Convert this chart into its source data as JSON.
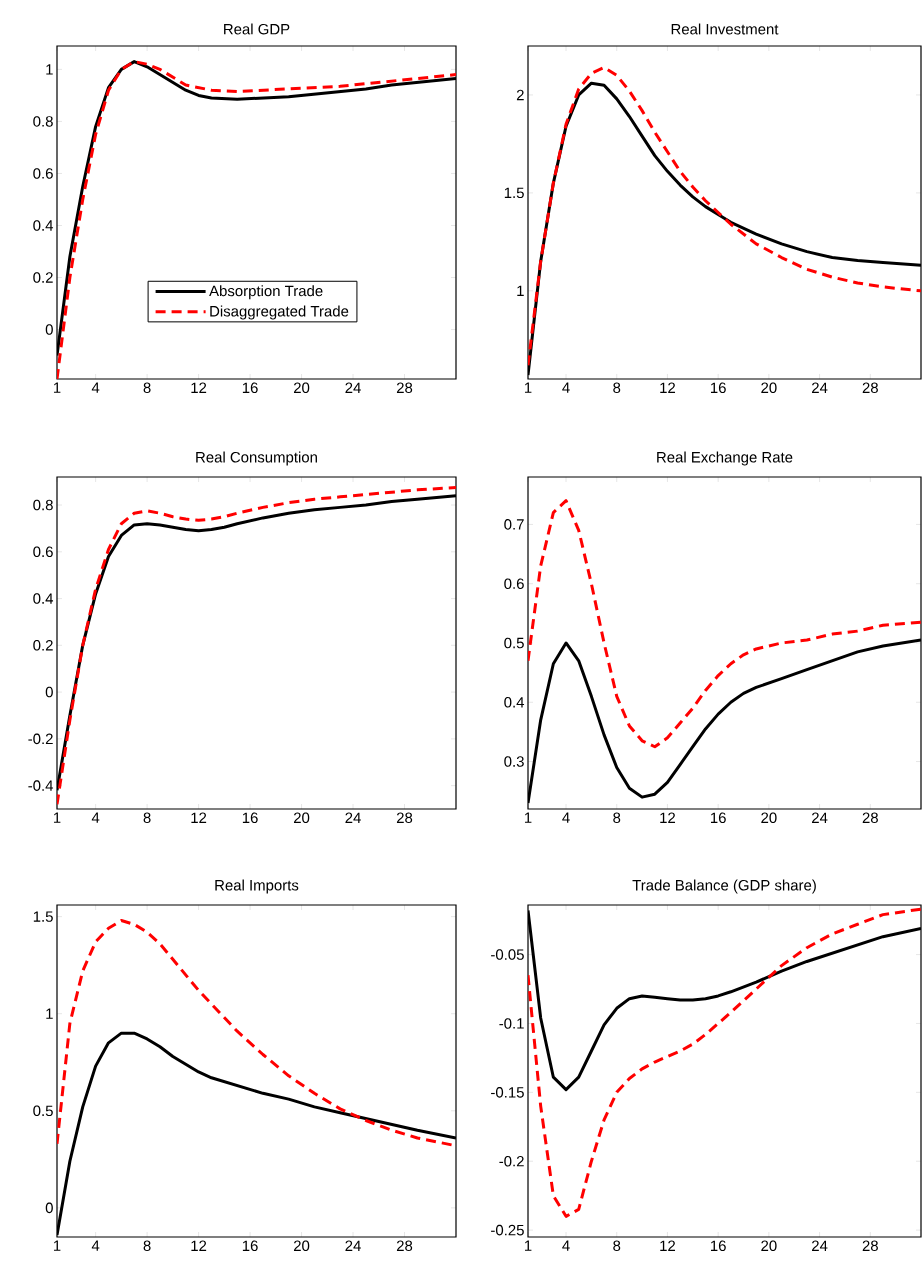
{
  "chart_data": [
    {
      "type": "line",
      "title": "Real GDP",
      "legend": "bottom",
      "xlim": [
        1,
        32
      ],
      "ylim": [
        -0.19,
        1.09
      ],
      "xticks": [
        1,
        4,
        8,
        12,
        16,
        20,
        24,
        28
      ],
      "yticks": [
        0,
        0.2,
        0.4,
        0.6,
        0.8,
        1
      ],
      "x": [
        1,
        2,
        3,
        4,
        5,
        6,
        7,
        8,
        9,
        10,
        11,
        12,
        13,
        15,
        17,
        19,
        21,
        23,
        25,
        27,
        29,
        32
      ],
      "series": [
        {
          "name": "Absorption Trade",
          "color": "#000000",
          "line_style": "solid",
          "values": [
            -0.1,
            0.28,
            0.55,
            0.78,
            0.93,
            1.0,
            1.03,
            1.01,
            0.98,
            0.95,
            0.92,
            0.9,
            0.89,
            0.885,
            0.89,
            0.895,
            0.905,
            0.915,
            0.925,
            0.94,
            0.95,
            0.965
          ]
        },
        {
          "name": "Disaggregated Trade",
          "color": "#ff0000",
          "line_style": "dashed",
          "values": [
            -0.19,
            0.2,
            0.5,
            0.75,
            0.92,
            1.0,
            1.03,
            1.02,
            1.0,
            0.97,
            0.94,
            0.93,
            0.92,
            0.915,
            0.92,
            0.925,
            0.93,
            0.935,
            0.945,
            0.955,
            0.965,
            0.98
          ]
        }
      ]
    },
    {
      "type": "line",
      "title": "Real Investment",
      "xlim": [
        1,
        32
      ],
      "ylim": [
        0.55,
        2.25
      ],
      "xticks": [
        1,
        4,
        8,
        12,
        16,
        20,
        24,
        28
      ],
      "yticks": [
        1,
        1.5,
        2
      ],
      "x": [
        1,
        2,
        3,
        4,
        5,
        6,
        7,
        8,
        9,
        10,
        11,
        12,
        13,
        14,
        15,
        16,
        17,
        19,
        21,
        23,
        25,
        27,
        29,
        32
      ],
      "series": [
        {
          "color": "#000000",
          "line_style": "solid",
          "values": [
            0.57,
            1.15,
            1.55,
            1.84,
            2.0,
            2.06,
            2.05,
            1.98,
            1.89,
            1.79,
            1.69,
            1.61,
            1.54,
            1.48,
            1.43,
            1.39,
            1.35,
            1.29,
            1.24,
            1.2,
            1.17,
            1.155,
            1.145,
            1.13
          ]
        },
        {
          "color": "#ff0000",
          "line_style": "dashed",
          "values": [
            0.62,
            1.15,
            1.55,
            1.85,
            2.03,
            2.11,
            2.14,
            2.1,
            2.02,
            1.92,
            1.81,
            1.71,
            1.61,
            1.53,
            1.46,
            1.4,
            1.34,
            1.24,
            1.17,
            1.11,
            1.07,
            1.04,
            1.02,
            1.0
          ]
        }
      ]
    },
    {
      "type": "line",
      "title": "Real Consumption",
      "xlim": [
        1,
        32
      ],
      "ylim": [
        -0.5,
        0.92
      ],
      "xticks": [
        1,
        4,
        8,
        12,
        16,
        20,
        24,
        28
      ],
      "yticks": [
        -0.4,
        -0.2,
        0,
        0.2,
        0.4,
        0.6,
        0.8
      ],
      "x": [
        1,
        2,
        3,
        4,
        5,
        6,
        7,
        8,
        9,
        10,
        11,
        12,
        13,
        14,
        15,
        17,
        19,
        21,
        23,
        25,
        27,
        29,
        32
      ],
      "series": [
        {
          "color": "#000000",
          "line_style": "solid",
          "values": [
            -0.42,
            -0.1,
            0.2,
            0.42,
            0.58,
            0.67,
            0.715,
            0.72,
            0.715,
            0.705,
            0.695,
            0.69,
            0.695,
            0.705,
            0.72,
            0.745,
            0.765,
            0.78,
            0.79,
            0.8,
            0.815,
            0.825,
            0.84
          ]
        },
        {
          "color": "#ff0000",
          "line_style": "dashed",
          "values": [
            -0.48,
            -0.12,
            0.2,
            0.44,
            0.61,
            0.72,
            0.765,
            0.775,
            0.765,
            0.75,
            0.74,
            0.735,
            0.74,
            0.75,
            0.765,
            0.79,
            0.81,
            0.825,
            0.835,
            0.845,
            0.855,
            0.865,
            0.875
          ]
        }
      ]
    },
    {
      "type": "line",
      "title": "Real Exchange Rate",
      "xlim": [
        1,
        32
      ],
      "ylim": [
        0.22,
        0.78
      ],
      "xticks": [
        1,
        4,
        8,
        12,
        16,
        20,
        24,
        28
      ],
      "yticks": [
        0.3,
        0.4,
        0.5,
        0.6,
        0.7
      ],
      "x": [
        1,
        2,
        3,
        4,
        5,
        6,
        7,
        8,
        9,
        10,
        11,
        12,
        13,
        14,
        15,
        16,
        17,
        18,
        19,
        21,
        23,
        25,
        27,
        29,
        32
      ],
      "series": [
        {
          "color": "#000000",
          "line_style": "solid",
          "values": [
            0.23,
            0.37,
            0.465,
            0.5,
            0.47,
            0.41,
            0.345,
            0.29,
            0.255,
            0.24,
            0.245,
            0.265,
            0.295,
            0.325,
            0.355,
            0.38,
            0.4,
            0.415,
            0.425,
            0.44,
            0.455,
            0.47,
            0.485,
            0.495,
            0.505
          ]
        },
        {
          "color": "#ff0000",
          "line_style": "dashed",
          "values": [
            0.47,
            0.63,
            0.72,
            0.74,
            0.69,
            0.6,
            0.5,
            0.41,
            0.36,
            0.335,
            0.325,
            0.34,
            0.365,
            0.39,
            0.42,
            0.445,
            0.465,
            0.48,
            0.49,
            0.5,
            0.505,
            0.515,
            0.52,
            0.53,
            0.535
          ]
        }
      ]
    },
    {
      "type": "line",
      "title": "Real Imports",
      "xlim": [
        1,
        32
      ],
      "ylim": [
        -0.15,
        1.56
      ],
      "xticks": [
        1,
        4,
        8,
        12,
        16,
        20,
        24,
        28
      ],
      "yticks": [
        0,
        0.5,
        1,
        1.5
      ],
      "x": [
        1,
        2,
        3,
        4,
        5,
        6,
        7,
        8,
        9,
        10,
        11,
        12,
        13,
        14,
        15,
        16,
        17,
        19,
        21,
        23,
        25,
        27,
        29,
        32
      ],
      "series": [
        {
          "color": "#000000",
          "line_style": "solid",
          "values": [
            -0.14,
            0.24,
            0.52,
            0.73,
            0.85,
            0.9,
            0.9,
            0.87,
            0.83,
            0.78,
            0.74,
            0.7,
            0.67,
            0.65,
            0.63,
            0.61,
            0.59,
            0.56,
            0.52,
            0.49,
            0.46,
            0.43,
            0.4,
            0.36
          ]
        },
        {
          "color": "#ff0000",
          "line_style": "dashed",
          "values": [
            0.33,
            0.95,
            1.22,
            1.37,
            1.44,
            1.48,
            1.46,
            1.42,
            1.36,
            1.28,
            1.2,
            1.12,
            1.05,
            0.98,
            0.91,
            0.85,
            0.79,
            0.68,
            0.59,
            0.51,
            0.45,
            0.4,
            0.36,
            0.32
          ]
        }
      ]
    },
    {
      "type": "line",
      "title": "Trade Balance (GDP share)",
      "xlim": [
        1,
        32
      ],
      "ylim": [
        -0.255,
        -0.014
      ],
      "xticks": [
        1,
        4,
        8,
        12,
        16,
        20,
        24,
        28
      ],
      "yticks": [
        -0.25,
        -0.2,
        -0.15,
        -0.1,
        -0.05
      ],
      "x": [
        1,
        2,
        3,
        4,
        5,
        6,
        7,
        8,
        9,
        10,
        11,
        12,
        13,
        14,
        15,
        16,
        17,
        19,
        21,
        23,
        25,
        27,
        29,
        32
      ],
      "series": [
        {
          "color": "#000000",
          "line_style": "solid",
          "values": [
            -0.018,
            -0.096,
            -0.139,
            -0.148,
            -0.139,
            -0.12,
            -0.101,
            -0.089,
            -0.082,
            -0.08,
            -0.081,
            -0.082,
            -0.083,
            -0.083,
            -0.082,
            -0.08,
            -0.077,
            -0.07,
            -0.062,
            -0.055,
            -0.049,
            -0.043,
            -0.037,
            -0.031
          ]
        },
        {
          "color": "#ff0000",
          "line_style": "dashed",
          "values": [
            -0.065,
            -0.16,
            -0.225,
            -0.24,
            -0.235,
            -0.2,
            -0.17,
            -0.15,
            -0.14,
            -0.133,
            -0.128,
            -0.124,
            -0.12,
            -0.115,
            -0.108,
            -0.1,
            -0.092,
            -0.075,
            -0.058,
            -0.045,
            -0.035,
            -0.028,
            -0.021,
            -0.017
          ]
        }
      ]
    }
  ]
}
